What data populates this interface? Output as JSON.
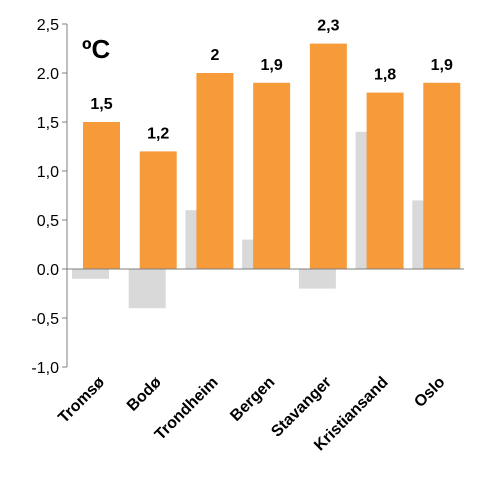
{
  "chart_data": {
    "type": "bar",
    "unit_label": "ºC",
    "categories": [
      "Tromsø",
      "Bodø",
      "Trondheim",
      "Bergen",
      "Stavanger",
      "Kristiansand",
      "Oslo"
    ],
    "series": [
      {
        "values": [
          -0.1,
          -0.4,
          0.6,
          0.3,
          -0.2,
          1.4,
          0.7
        ],
        "color": "#d9d9d9"
      },
      {
        "values": [
          1.5,
          1.2,
          2.0,
          1.9,
          2.3,
          1.8,
          1.9
        ],
        "color": "#f79a3a",
        "data_labels": [
          "1,5",
          "1,2",
          "2",
          "1,9",
          "2,3",
          "1,8",
          "1,9"
        ]
      }
    ],
    "y_ticks": [
      {
        "value": 2.5,
        "label": "2,5"
      },
      {
        "value": 2.0,
        "label": "2.0"
      },
      {
        "value": 1.5,
        "label": "1,5"
      },
      {
        "value": 1.0,
        "label": "1,0"
      },
      {
        "value": 0.5,
        "label": "0,5"
      },
      {
        "value": 0.0,
        "label": "0.0"
      },
      {
        "value": -0.5,
        "label": "-0,5"
      },
      {
        "value": -1.0,
        "label": "-1,0"
      }
    ],
    "ylim": [
      -1.0,
      2.5
    ],
    "grid": false,
    "legend": "none"
  }
}
